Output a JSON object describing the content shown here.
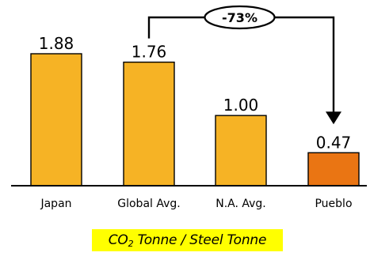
{
  "chart_data": {
    "type": "bar",
    "categories": [
      "Japan",
      "Global Avg.",
      "N.A. Avg.",
      "Pueblo"
    ],
    "values": [
      1.88,
      1.76,
      1.0,
      0.47
    ],
    "data_labels": [
      "1.88",
      "1.76",
      "1.00",
      "0.47"
    ],
    "bar_colors": [
      "#f6b325",
      "#f6b325",
      "#f6b325",
      "#ea7513"
    ],
    "ylim": [
      0,
      1.88
    ],
    "grid": false,
    "annotation": {
      "text": "-73%",
      "from": "Global Avg.",
      "to": "Pueblo"
    },
    "unit_caption": {
      "prefix": "CO",
      "subscript": "2",
      "suffix": " Tonne / Steel Tonne",
      "highlight_color": "#ffff00"
    }
  }
}
